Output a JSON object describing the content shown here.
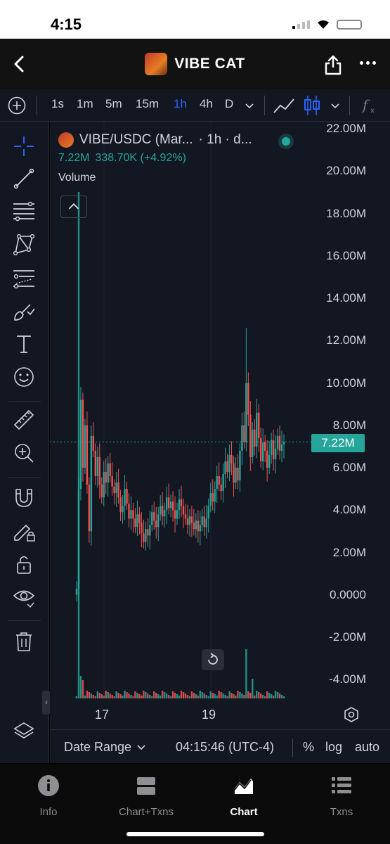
{
  "status": {
    "time": "4:15"
  },
  "header": {
    "title": "VIBE CAT"
  },
  "toolbar": {
    "intervals": [
      "1s",
      "1m",
      "5m",
      "15m",
      "1h",
      "4h",
      "D"
    ],
    "active_interval": "1h"
  },
  "legend": {
    "symbol": "VIBE/USDC (Mar...",
    "interval": "· 1h · d...",
    "price": "7.22M",
    "change": "338.70K (+4.92%)",
    "volume_label": "Volume"
  },
  "price_axis": [
    "22.00M",
    "20.00M",
    "18.00M",
    "16.00M",
    "14.00M",
    "12.00M",
    "10.00M",
    "8.00M",
    "6.00M",
    "4.00M",
    "2.00M",
    "0.0000",
    "-2.00M",
    "-4.00M"
  ],
  "last_price": "7.22M",
  "time_axis": [
    "17",
    "19"
  ],
  "bottom_bar": {
    "date_range": "Date Range",
    "clock": "04:15:46 (UTC-4)",
    "percent": "%",
    "log": "log",
    "auto": "auto"
  },
  "tabs": [
    {
      "label": "Info"
    },
    {
      "label": "Chart+Txns"
    },
    {
      "label": "Chart"
    },
    {
      "label": "Txns"
    }
  ],
  "active_tab": "Chart",
  "colors": {
    "up": "#26a69a",
    "down": "#ef5350",
    "accent": "#2962ff",
    "background": "#131722"
  }
}
